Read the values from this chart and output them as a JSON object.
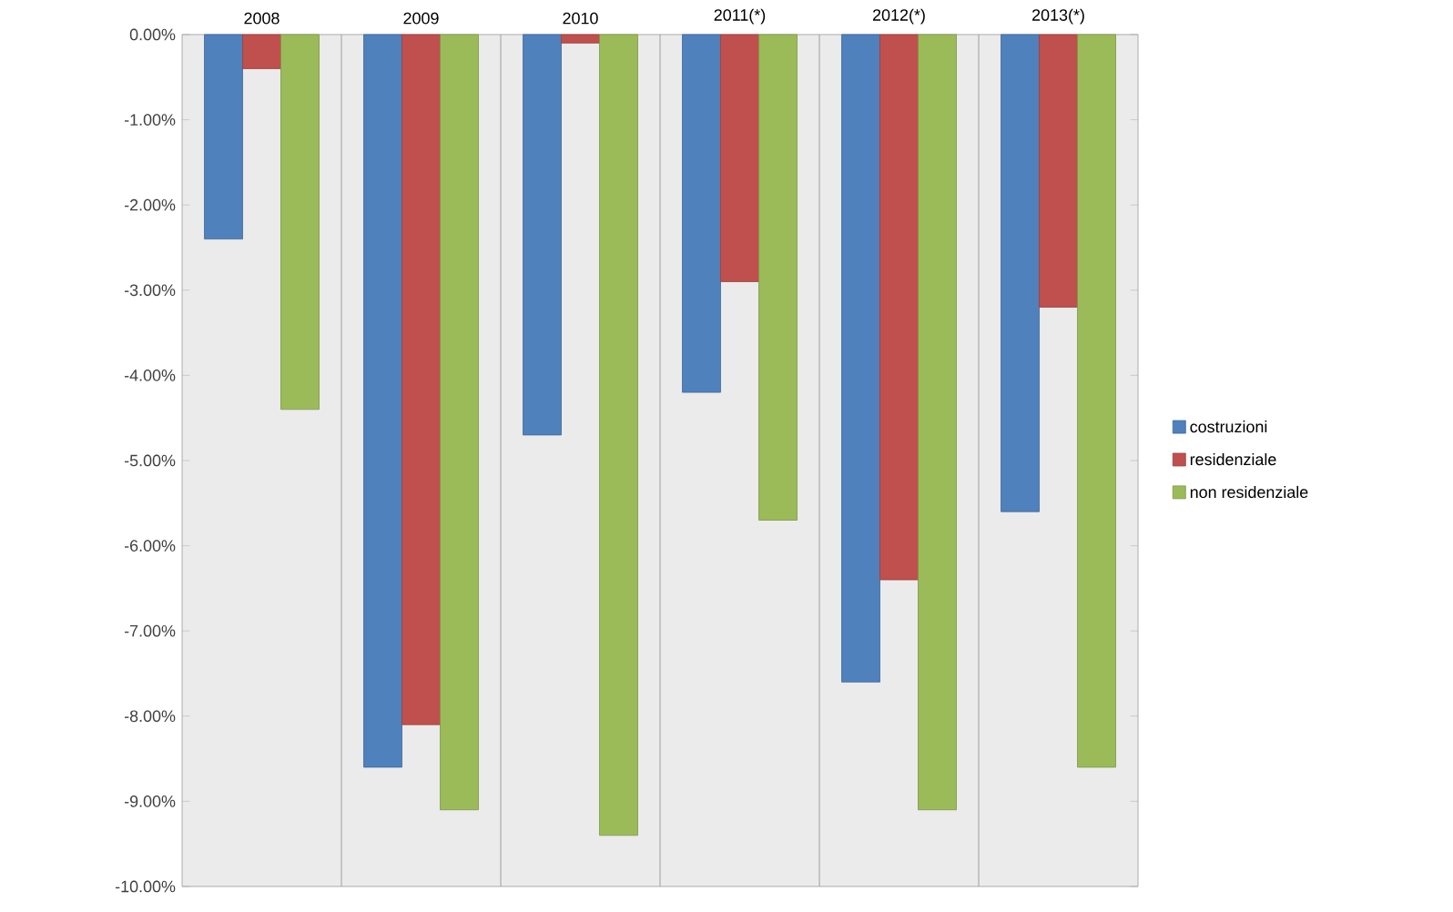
{
  "chart_data": {
    "type": "bar",
    "categories": [
      "2008",
      "2009",
      "2010",
      "2011(*)",
      "2012(*)",
      "2013(*)"
    ],
    "series": [
      {
        "name": "costruzioni",
        "color": "#4f81bd",
        "values": [
          -2.4,
          -8.6,
          -4.7,
          -4.2,
          -7.6,
          -5.6
        ]
      },
      {
        "name": "residenziale",
        "color": "#c0504d",
        "values": [
          -0.4,
          -8.1,
          -0.1,
          -2.9,
          -6.4,
          -3.2
        ]
      },
      {
        "name": "non residenziale",
        "color": "#9bbb59",
        "values": [
          -4.4,
          -9.1,
          -9.4,
          -5.7,
          -9.1,
          -8.6
        ]
      }
    ],
    "ylim": [
      -10,
      0
    ],
    "yticks": [
      {
        "value": 0,
        "label": "0.00%"
      },
      {
        "value": -1,
        "label": "-1.00%"
      },
      {
        "value": -2,
        "label": "-2.00%"
      },
      {
        "value": -3,
        "label": "-3.00%"
      },
      {
        "value": -4,
        "label": "-4.00%"
      },
      {
        "value": -5,
        "label": "-5.00%"
      },
      {
        "value": -6,
        "label": "-6.00%"
      },
      {
        "value": -7,
        "label": "-7.00%"
      },
      {
        "value": -8,
        "label": "-8.00%"
      },
      {
        "value": -9,
        "label": "-9.00%"
      },
      {
        "value": -10,
        "label": "-10.00%"
      }
    ],
    "legend": "right"
  }
}
